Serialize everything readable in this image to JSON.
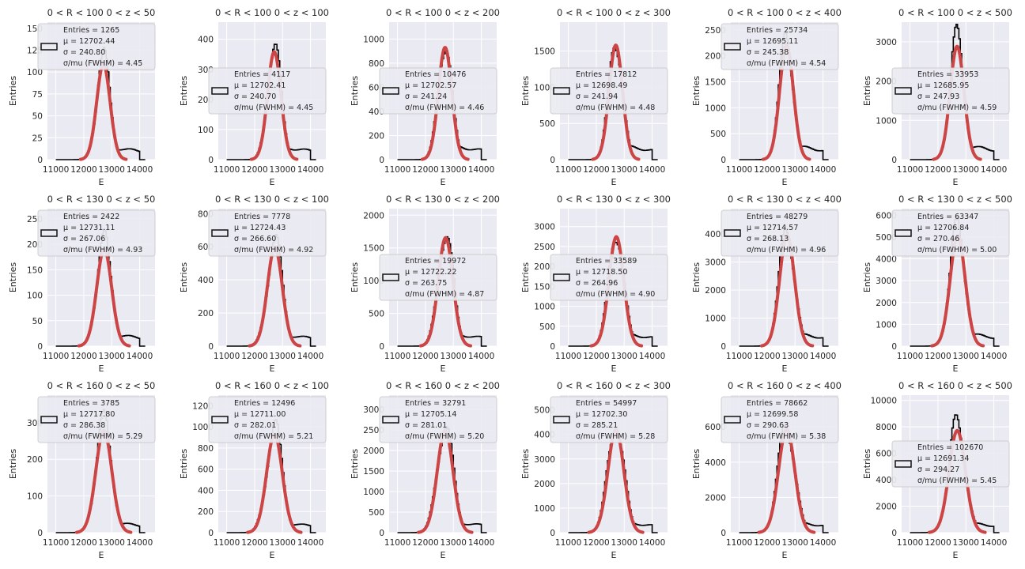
{
  "figure": {
    "xlabel": "E",
    "ylabel": "Entries"
  },
  "colors": {
    "axes_bg": "#eaeaf2",
    "grid": "#ffffff",
    "hist": "#000000",
    "fit": "#cc4444",
    "legend_bg": "#ebebf2",
    "legend_border": "#cccccc"
  },
  "chart_data": [
    {
      "type": "bar",
      "title": "0 < R < 100 0 < z < 50",
      "xlabel": "E",
      "ylabel": "Entries",
      "xlim": [
        10700,
        14550
      ],
      "ylim": [
        0,
        157
      ],
      "yticks": [
        0,
        25,
        50,
        75,
        100,
        125,
        150
      ],
      "xticks": [
        11000,
        12000,
        13000,
        14000
      ],
      "entries": "1265",
      "mu": "12702.44",
      "sigma": "240.80",
      "res": "4.45",
      "peak": 117,
      "tail": 15,
      "legend_pos": "upper-left",
      "grid": true
    },
    {
      "type": "bar",
      "title": "0 < R < 100 0 < z < 100",
      "xlabel": "E",
      "ylabel": "Entries",
      "xlim": [
        10700,
        14550
      ],
      "ylim": [
        0,
        457
      ],
      "yticks": [
        0,
        100,
        200,
        300,
        400
      ],
      "xticks": [
        11000,
        12000,
        13000,
        14000
      ],
      "entries": "4117",
      "mu": "12702.41",
      "sigma": "240.70",
      "res": "4.45",
      "peak": 385,
      "tail": 45,
      "legend_pos": "center-left",
      "grid": true
    },
    {
      "type": "bar",
      "title": "0 < R < 100 0 < z < 200",
      "xlabel": "E",
      "ylabel": "Entries",
      "xlim": [
        10700,
        14550
      ],
      "ylim": [
        0,
        1140
      ],
      "yticks": [
        0,
        200,
        400,
        600,
        800,
        1000
      ],
      "xticks": [
        11000,
        12000,
        13000,
        14000
      ],
      "entries": "10476",
      "mu": "12702.57",
      "sigma": "241.24",
      "res": "4.46",
      "peak": 1000,
      "tail": 120,
      "legend_pos": "center-left",
      "grid": true
    },
    {
      "type": "bar",
      "title": "0 < R < 100 0 < z < 300",
      "xlabel": "E",
      "ylabel": "Entries",
      "xlim": [
        10700,
        14550
      ],
      "ylim": [
        0,
        1900
      ],
      "yticks": [
        0,
        500,
        1000,
        1500
      ],
      "xticks": [
        11000,
        12000,
        13000,
        14000
      ],
      "entries": "17812",
      "mu": "12698.49",
      "sigma": "241.94",
      "res": "4.48",
      "peak": 1700,
      "tail": 200,
      "legend_pos": "center-left",
      "grid": true
    },
    {
      "type": "bar",
      "title": "0 < R < 100 0 < z < 400",
      "xlabel": "E",
      "ylabel": "Entries",
      "xlim": [
        10700,
        14550
      ],
      "ylim": [
        0,
        2650
      ],
      "yticks": [
        0,
        500,
        1000,
        1500,
        2000,
        2500
      ],
      "xticks": [
        11000,
        12000,
        13000,
        14000
      ],
      "entries": "25734",
      "mu": "12695.11",
      "sigma": "245.38",
      "res": "4.54",
      "peak": 2380,
      "tail": 280,
      "legend_pos": "upper-left",
      "grid": true
    },
    {
      "type": "bar",
      "title": "0 < R < 100 0 < z < 500",
      "xlabel": "E",
      "ylabel": "Entries",
      "xlim": [
        10700,
        14550
      ],
      "ylim": [
        0,
        3500
      ],
      "yticks": [
        0,
        1000,
        2000,
        3000
      ],
      "xticks": [
        11000,
        12000,
        13000,
        14000
      ],
      "entries": "33953",
      "mu": "12685.95",
      "sigma": "247.93",
      "res": "4.59",
      "peak": 3100,
      "tail": 380,
      "legend_pos": "center-left",
      "grid": true
    },
    {
      "type": "bar",
      "title": "0 < R < 130 0 < z < 50",
      "xlabel": "E",
      "ylabel": "Entries",
      "xlim": [
        10700,
        14550
      ],
      "ylim": [
        0,
        270
      ],
      "yticks": [
        0,
        50,
        100,
        150,
        200,
        250
      ],
      "xticks": [
        11000,
        12000,
        13000,
        14000
      ],
      "entries": "2422",
      "mu": "12731.11",
      "sigma": "267.06",
      "res": "4.93",
      "peak": 205,
      "tail": 25,
      "legend_pos": "upper-left",
      "grid": true
    },
    {
      "type": "bar",
      "title": "0 < R < 130 0 < z < 100",
      "xlabel": "E",
      "ylabel": "Entries",
      "xlim": [
        10700,
        14550
      ],
      "ylim": [
        0,
        830
      ],
      "yticks": [
        0,
        200,
        400,
        600,
        800
      ],
      "xticks": [
        11000,
        12000,
        13000,
        14000
      ],
      "entries": "7778",
      "mu": "12724.43",
      "sigma": "266.60",
      "res": "4.92",
      "peak": 640,
      "tail": 75,
      "legend_pos": "upper-left",
      "grid": true
    },
    {
      "type": "bar",
      "title": "0 < R < 130 0 < z < 200",
      "xlabel": "E",
      "ylabel": "Entries",
      "xlim": [
        10700,
        14550
      ],
      "ylim": [
        0,
        2100
      ],
      "yticks": [
        0,
        500,
        1000,
        1500,
        2000
      ],
      "xticks": [
        11000,
        12000,
        13000,
        14000
      ],
      "entries": "19972",
      "mu": "12722.22",
      "sigma": "263.75",
      "res": "4.87",
      "peak": 1780,
      "tail": 200,
      "legend_pos": "center-left",
      "grid": true
    },
    {
      "type": "bar",
      "title": "0 < R < 130 0 < z < 300",
      "xlabel": "E",
      "ylabel": "Entries",
      "xlim": [
        10700,
        14550
      ],
      "ylim": [
        0,
        3450
      ],
      "yticks": [
        0,
        500,
        1000,
        1500,
        2000,
        2500,
        3000
      ],
      "xticks": [
        11000,
        12000,
        13000,
        14000
      ],
      "entries": "33589",
      "mu": "12718.50",
      "sigma": "264.96",
      "res": "4.90",
      "peak": 2950,
      "tail": 330,
      "legend_pos": "center-left",
      "grid": true
    },
    {
      "type": "bar",
      "title": "0 < R < 130 0 < z < 400",
      "xlabel": "E",
      "ylabel": "Entries",
      "xlim": [
        10700,
        14550
      ],
      "ylim": [
        0,
        4900
      ],
      "yticks": [
        0,
        1000,
        2000,
        3000,
        4000
      ],
      "xticks": [
        11000,
        12000,
        13000,
        14000
      ],
      "entries": "48279",
      "mu": "12714.57",
      "sigma": "268.13",
      "res": "4.96",
      "peak": 4250,
      "tail": 470,
      "legend_pos": "upper-left",
      "grid": true
    },
    {
      "type": "bar",
      "title": "0 < R < 130 0 < z < 500",
      "xlabel": "E",
      "ylabel": "Entries",
      "xlim": [
        10700,
        14550
      ],
      "ylim": [
        0,
        6300
      ],
      "yticks": [
        0,
        1000,
        2000,
        3000,
        4000,
        5000,
        6000
      ],
      "xticks": [
        11000,
        12000,
        13000,
        14000
      ],
      "entries": "63347",
      "mu": "12706.84",
      "sigma": "270.46",
      "res": "5.00",
      "peak": 5450,
      "tail": 620,
      "legend_pos": "upper-left",
      "grid": true
    },
    {
      "type": "bar",
      "title": "0 < R < 160 0 < z < 50",
      "xlabel": "E",
      "ylabel": "Entries",
      "xlim": [
        10700,
        14550
      ],
      "ylim": [
        0,
        375
      ],
      "yticks": [
        0,
        100,
        200,
        300
      ],
      "xticks": [
        11000,
        12000,
        13000,
        14000
      ],
      "entries": "3785",
      "mu": "12717.80",
      "sigma": "286.38",
      "res": "5.29",
      "peak": 300,
      "tail": 30,
      "legend_pos": "upper-left",
      "grid": true
    },
    {
      "type": "bar",
      "title": "0 < R < 160 0 < z < 100",
      "xlabel": "E",
      "ylabel": "Entries",
      "xlim": [
        10700,
        14550
      ],
      "ylim": [
        0,
        1300
      ],
      "yticks": [
        0,
        200,
        400,
        600,
        800,
        1000,
        1200
      ],
      "xticks": [
        11000,
        12000,
        13000,
        14000
      ],
      "entries": "12496",
      "mu": "12711.00",
      "sigma": "282.01",
      "res": "5.21",
      "peak": 1000,
      "tail": 100,
      "legend_pos": "upper-left",
      "grid": true
    },
    {
      "type": "bar",
      "title": "0 < R < 160 0 < z < 200",
      "xlabel": "E",
      "ylabel": "Entries",
      "xlim": [
        10700,
        14550
      ],
      "ylim": [
        0,
        3350
      ],
      "yticks": [
        0,
        500,
        1000,
        1500,
        2000,
        2500,
        3000
      ],
      "xticks": [
        11000,
        12000,
        13000,
        14000
      ],
      "entries": "32791",
      "mu": "12705.14",
      "sigma": "281.01",
      "res": "5.20",
      "peak": 2680,
      "tail": 280,
      "legend_pos": "upper-left",
      "grid": true
    },
    {
      "type": "bar",
      "title": "0 < R < 160 0 < z < 300",
      "xlabel": "E",
      "ylabel": "Entries",
      "xlim": [
        10700,
        14550
      ],
      "ylim": [
        0,
        5600
      ],
      "yticks": [
        0,
        1000,
        2000,
        3000,
        4000,
        5000
      ],
      "xticks": [
        11000,
        12000,
        13000,
        14000
      ],
      "entries": "54997",
      "mu": "12702.30",
      "sigma": "285.21",
      "res": "5.28",
      "peak": 4500,
      "tail": 450,
      "legend_pos": "upper-left",
      "grid": true
    },
    {
      "type": "bar",
      "title": "0 < R < 160 0 < z < 400",
      "xlabel": "E",
      "ylabel": "Entries",
      "xlim": [
        10700,
        14550
      ],
      "ylim": [
        0,
        7800
      ],
      "yticks": [
        0,
        2000,
        4000,
        6000
      ],
      "xticks": [
        11000,
        12000,
        13000,
        14000
      ],
      "entries": "78662",
      "mu": "12699.58",
      "sigma": "290.63",
      "res": "5.38",
      "peak": 6300,
      "tail": 620,
      "legend_pos": "upper-left",
      "grid": true
    },
    {
      "type": "bar",
      "title": "0 < R < 160 0 < z < 500",
      "xlabel": "E",
      "ylabel": "Entries",
      "xlim": [
        10700,
        14550
      ],
      "ylim": [
        0,
        10400
      ],
      "yticks": [
        0,
        2000,
        4000,
        6000,
        8000,
        10000
      ],
      "xticks": [
        11000,
        12000,
        13000,
        14000
      ],
      "entries": "102670",
      "mu": "12691.34",
      "sigma": "294.27",
      "res": "5.45",
      "peak": 8300,
      "tail": 800,
      "legend_pos": "center-left",
      "grid": true
    }
  ]
}
